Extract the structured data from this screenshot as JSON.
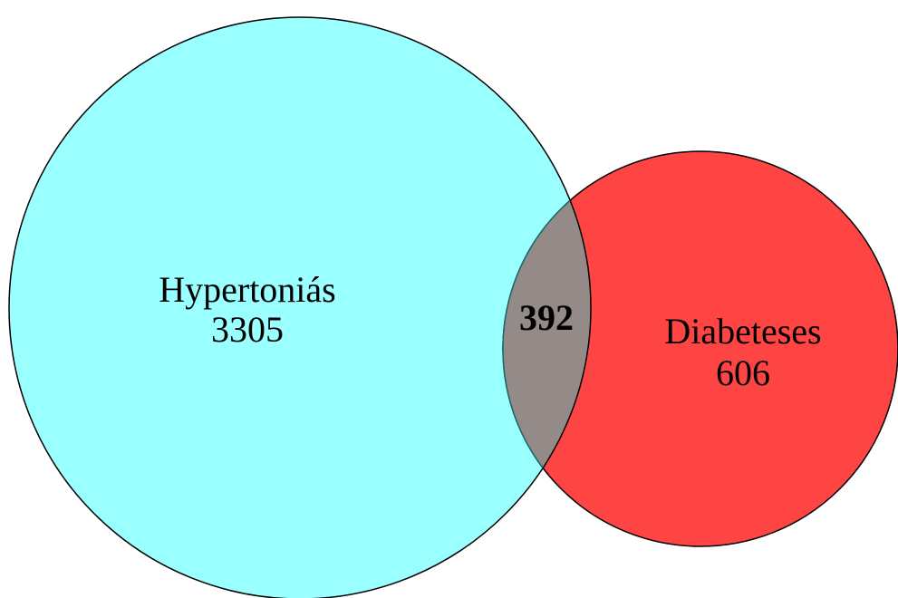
{
  "sets": [
    {
      "label": "Hypertoniás",
      "count": 3305
    },
    {
      "label": "Diabeteses",
      "count": 606
    }
  ],
  "intersection": {
    "count": 392
  }
}
